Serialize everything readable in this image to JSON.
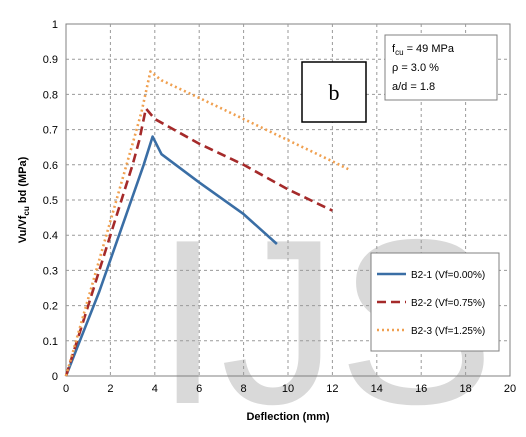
{
  "chart_data": {
    "type": "line",
    "xlabel": "Deflection (mm)",
    "ylabel": "Vu/Vf",
    "ylabel_sub": "cu",
    "ylabel_rest": " bd (MPa)",
    "xlim": [
      0,
      20
    ],
    "ylim": [
      0,
      1
    ],
    "x_ticks": [
      "0",
      "2",
      "4",
      "6",
      "8",
      "10",
      "12",
      "14",
      "16",
      "18",
      "20"
    ],
    "y_ticks": [
      "0",
      "0.1",
      "0.2",
      "0.3",
      "0.4",
      "0.5",
      "0.6",
      "0.7",
      "0.8",
      "0.9",
      "1"
    ],
    "grid": true,
    "legend_position": "lower-right",
    "series": [
      {
        "name": "B2-1 (Vf=0.00%)",
        "color": "#3a6ea5",
        "dash": "solid",
        "points": [
          [
            0,
            0
          ],
          [
            0.5,
            0.08
          ],
          [
            1.0,
            0.16
          ],
          [
            1.5,
            0.24
          ],
          [
            2.0,
            0.33
          ],
          [
            2.5,
            0.42
          ],
          [
            3.0,
            0.51
          ],
          [
            3.5,
            0.6
          ],
          [
            3.9,
            0.68
          ],
          [
            4.3,
            0.63
          ],
          [
            6.0,
            0.55
          ],
          [
            8.0,
            0.46
          ],
          [
            9.5,
            0.375
          ]
        ]
      },
      {
        "name": "B2-2 (Vf=0.75%)",
        "color": "#a52a2a",
        "dash": "dashed",
        "points": [
          [
            0,
            0
          ],
          [
            0.5,
            0.1
          ],
          [
            1.0,
            0.2
          ],
          [
            1.5,
            0.3
          ],
          [
            2.0,
            0.4
          ],
          [
            2.5,
            0.5
          ],
          [
            3.0,
            0.6
          ],
          [
            3.3,
            0.67
          ],
          [
            3.6,
            0.76
          ],
          [
            4.0,
            0.73
          ],
          [
            6.0,
            0.66
          ],
          [
            8.0,
            0.6
          ],
          [
            10.0,
            0.53
          ],
          [
            12.0,
            0.47
          ]
        ]
      },
      {
        "name": "B2-3 (Vf=1.25%)",
        "color": "#f0a050",
        "dash": "dotted",
        "points": [
          [
            0,
            0
          ],
          [
            0.5,
            0.11
          ],
          [
            1.0,
            0.22
          ],
          [
            1.5,
            0.33
          ],
          [
            2.0,
            0.44
          ],
          [
            2.5,
            0.55
          ],
          [
            3.0,
            0.66
          ],
          [
            3.4,
            0.75
          ],
          [
            3.8,
            0.865
          ],
          [
            4.3,
            0.84
          ],
          [
            6.0,
            0.79
          ],
          [
            8.0,
            0.73
          ],
          [
            10.0,
            0.67
          ],
          [
            12.0,
            0.61
          ],
          [
            12.8,
            0.585
          ]
        ]
      }
    ]
  },
  "info_box": {
    "line1_main": "f",
    "line1_sub": "cu",
    "line1_rest": " = 49 MPa",
    "line2": "ρ   = 3.0 %",
    "line3": "a/d = 1.8"
  },
  "panel_label": "b",
  "watermark": "IJS"
}
